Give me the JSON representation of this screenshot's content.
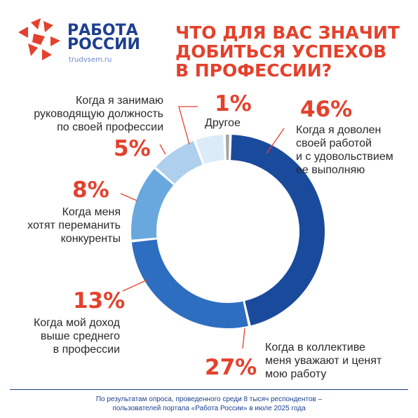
{
  "header": {
    "brand_line1": "РАБОТА",
    "brand_line2": "РОССИИ",
    "brand_url": "trudvsem.ru",
    "title_line1": "ЧТО ДЛЯ ВАС ЗНАЧИТ",
    "title_line2": "ДОБИТЬСЯ УСПЕХОВ",
    "title_line3": "В ПРОФЕССИИ?"
  },
  "chart_data": {
    "type": "pie",
    "variant": "donut",
    "title": "ЧТО ДЛЯ ВАС ЗНАЧИТ ДОБИТЬСЯ УСПЕХОВ В ПРОФЕССИИ?",
    "slices": [
      {
        "value": 46,
        "label_value": "46%",
        "label": "Когда я доволен\nсвоей работой\nи с удовольствием\nее выполняю",
        "color": "#1a4a9c"
      },
      {
        "value": 27,
        "label_value": "27%",
        "label": "Когда в коллективе\nменя уважают и ценят\nмою работу",
        "color": "#2e6ec0"
      },
      {
        "value": 13,
        "label_value": "13%",
        "label": "Когда мой доход\nвыше среднего\nв профессии",
        "color": "#69a8de"
      },
      {
        "value": 8,
        "label_value": "8%",
        "label": "Когда меня\nхотят переманить\nконкуренты",
        "color": "#aed0ee"
      },
      {
        "value": 5,
        "label_value": "5%",
        "label": "Когда я занимаю\nруководящую должность\nпо своей профессии",
        "color": "#dcebf8"
      },
      {
        "value": 1,
        "label_value": "1%",
        "label": "Другое",
        "color": "#a6a6a6"
      }
    ]
  },
  "footer": {
    "note": "По результатам опроса, проведенного среди 8 тысяч респондентов –\nпользователей портала «Работа России» в июле 2025 года"
  },
  "colors": {
    "brand_blue": "#1d3f8f",
    "accent_red": "#e4412c"
  }
}
